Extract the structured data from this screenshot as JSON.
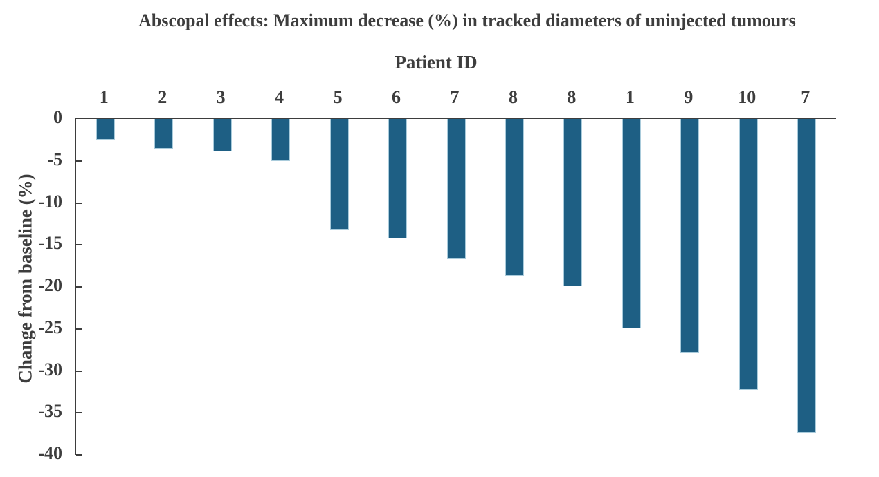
{
  "chart_data": {
    "type": "bar",
    "title": "Abscopal effects: Maximum decrease (%) in tracked diameters of uninjected tumours",
    "xlabel": "Patient ID",
    "ylabel": "Change from baseline (%)",
    "categories": [
      "1",
      "2",
      "3",
      "4",
      "5",
      "6",
      "7",
      "8",
      "8",
      "1",
      "9",
      "10",
      "7"
    ],
    "values": [
      -2.5,
      -3.5,
      -3.9,
      -5.0,
      -13.2,
      -14.2,
      -16.6,
      -18.7,
      -19.9,
      -24.9,
      -27.8,
      -32.3,
      -37.4
    ],
    "series_name": "Maximum decrease in tracked diameters of uninjected tumours (%)",
    "ylim": [
      -40,
      0
    ],
    "ytick_step": 5,
    "ytick_labels": [
      "0",
      "-5",
      "-10",
      "-15",
      "-20",
      "-25",
      "-30",
      "-35",
      "-40"
    ],
    "grid": false,
    "legend": false,
    "bar_color": "#1e5f84",
    "bar_border_color": "#a9cbdb",
    "axis_color": "#3d3d3d",
    "text_color": "#3d3d3d",
    "background_color": "#ffffff"
  }
}
